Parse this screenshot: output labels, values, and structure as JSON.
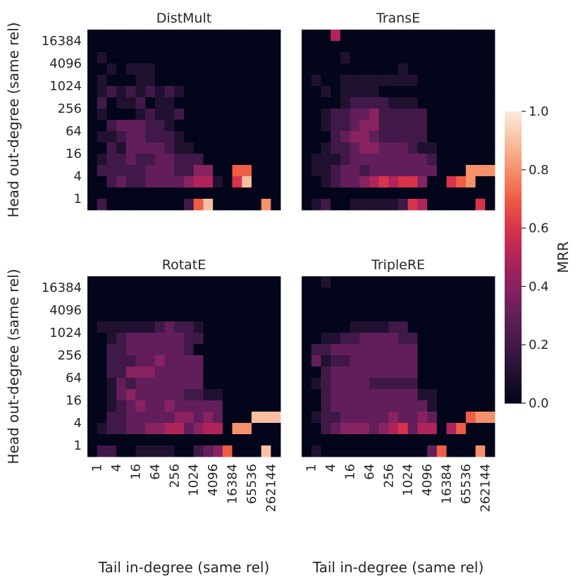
{
  "chart_data": {
    "type": "heatmap",
    "x_tick_labels": [
      "1",
      "4",
      "16",
      "64",
      "256",
      "1024",
      "4096",
      "16384",
      "65536",
      "262144"
    ],
    "y_tick_labels": [
      "16384",
      "4096",
      "1024",
      "256",
      "64",
      "16",
      "4",
      "1"
    ],
    "xlabel": "Tail in-degree (same rel)",
    "ylabel": "Head out-degree (same rel)",
    "colorbar": {
      "label": "MRR",
      "range": [
        0.0,
        1.0
      ],
      "tick_labels": [
        "0.0",
        "0.2",
        "0.4",
        "0.6",
        "0.8",
        "1.0"
      ]
    },
    "grid_cols": 20,
    "grid_rows": 16,
    "panels": [
      {
        "title": "DistMult",
        "rows": [
          "00000000000000000000",
          "00000000000000000000",
          "01000000000000000000",
          "00101110000000000000",
          "01000110000000000000",
          "01212121210000000000",
          "02011201100000000000",
          "01000121120000000000",
          "00233322100000000000",
          "01123322210000000000",
          "00213333211000000000",
          "01223223322200000000",
          "02222233322440077000",
          "00232233334551069000",
          "00000000000000000000",
          "02000000002790000080"
        ],
        "mask": [
          "11111111111111111111",
          "11111111111111111111",
          "11111111111111111111",
          "11111111111111111111",
          "11111111111111111111",
          "11111111111111111111",
          "11111111111111111111",
          "11111111111111111111",
          "11111111111111111111",
          "11111111111111111111",
          "11111111111111111111",
          "11111111111111111111",
          "11111111111111111111",
          "11111111111111111111",
          "11111111111111111111",
          "11111111111111111111"
        ]
      },
      {
        "title": "TransE",
        "rows": [
          "00050000000000000000",
          "00000000000000000000",
          "00001000000000000000",
          "00000000001000000000",
          "01001111111100000000",
          "00101111000000000000",
          "00001222211100000000",
          "00122334222220000000",
          "00122344222220000000",
          "00023443222220000000",
          "00122344333211000000",
          "01112333333332000000",
          "01123323333333000888",
          "00123345656640067800",
          "00000000000000000000",
          "01200111112650000060"
        ],
        "mask": [
          "11111111111111111111",
          "11111111111111111111",
          "11111111111111111111",
          "11111111111111111111",
          "11111111111111111111",
          "11111111111111111111",
          "11111111111111111111",
          "11111111111111111111",
          "11111111111111111111",
          "11111111111111111111",
          "11111111111111111111",
          "11111111111111111111",
          "11111111111111111111",
          "11111111111111111111",
          "11111111111111111111",
          "11111111111111111111"
        ]
      },
      {
        "title": "RotatE",
        "rows": [
          "00000000000000000000",
          "00000000000000000000",
          "00000000000000000000",
          "00000000000000000000",
          "01111112322100000000",
          "00123333332200000000",
          "00223333332000000000",
          "00222334333300000000",
          "00224443333300000000",
          "00132333333300000000",
          "00134333332211000000",
          "00123433433333000000",
          "00223333344343000999",
          "01223344553455088000",
          "00000000000000000000",
          "02200111100234700090"
        ],
        "mask": [
          "11111111111111111111",
          "11111111111111111111",
          "11111111111111111111",
          "11111111111111111111",
          "11111111111111111111",
          "11111111111111111111",
          "11111111111111111111",
          "11111111111111111111",
          "11111111111111111111",
          "11111111111111111111",
          "11111111111111111111",
          "11111111111111111111",
          "11111111111111111111",
          "11111111111111111111",
          "11111111111111111111",
          "11111111111111111111"
        ]
      },
      {
        "title": "TripleRE",
        "rows": [
          "00100000000000000000",
          "00000000000000000000",
          "00000000000000000000",
          "00000000000000000000",
          "00000111122000000000",
          "00112233332200000000",
          "02233333333300000000",
          "03122333333300000000",
          "00233333333300000000",
          "01233332222200000000",
          "00233333333311000000",
          "00233333333331000000",
          "01223333343343000788",
          "00234443456355057000",
          "00000000000000000000",
          "01000000000003700080"
        ],
        "mask": [
          "11111111111111111111",
          "11111111111111111111",
          "11111111111111111111",
          "11111111111111111111",
          "11111111111111111111",
          "11111111111111111111",
          "11111111111111111111",
          "11111111111111111111",
          "11111111111111111111",
          "11111111111111111111",
          "11111111111111111111",
          "11111111111111111111",
          "11111111111111111111",
          "11111111111111111111",
          "11111111111111111111",
          "11111111111111111111"
        ]
      }
    ]
  }
}
